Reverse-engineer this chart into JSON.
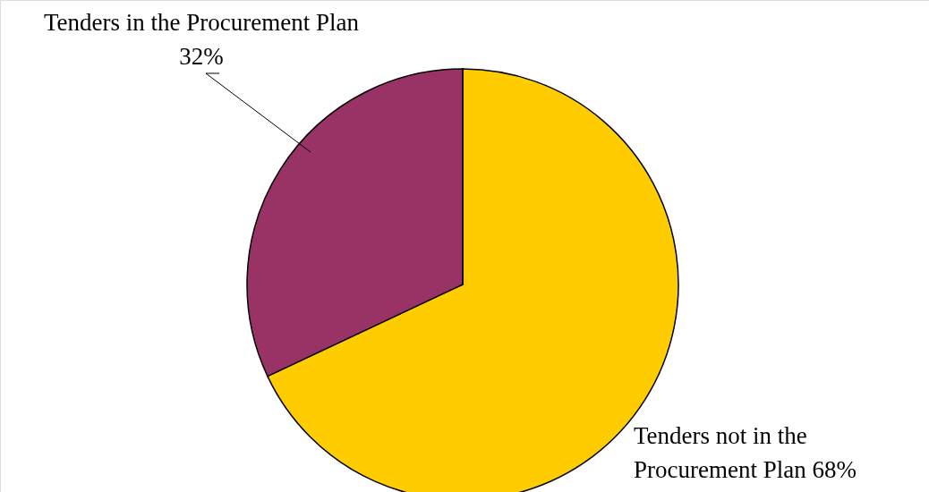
{
  "chart_data": {
    "type": "pie",
    "categories": [
      "Tenders not in the Procurement Plan",
      "Tenders in the Procurement Plan"
    ],
    "values": [
      68,
      32
    ],
    "colors": [
      "#ffcc00",
      "#993366"
    ],
    "value_labels": [
      "68%",
      "32%"
    ]
  }
}
